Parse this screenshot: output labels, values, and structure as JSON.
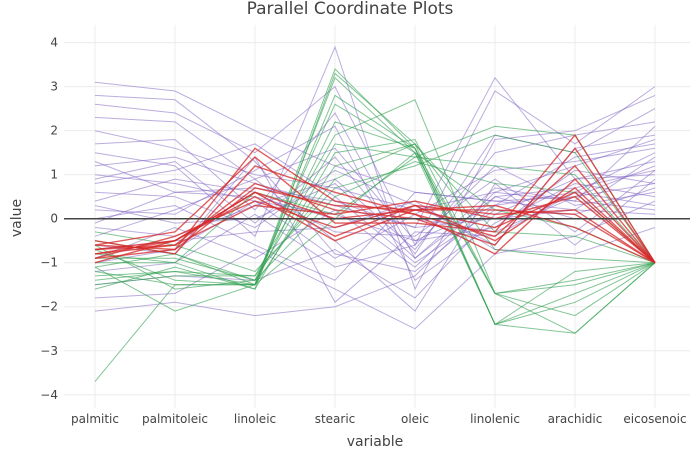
{
  "chart_data": {
    "type": "line",
    "title": "Parallel Coordinate Plots",
    "xlabel": "variable",
    "ylabel": "value",
    "categories": [
      "palmitic",
      "palmitoleic",
      "linoleic",
      "stearic",
      "oleic",
      "linolenic",
      "arachidic",
      "eicosenoic"
    ],
    "ylim": [
      -4.3,
      4.4
    ],
    "yticks": [
      -4,
      -3,
      -2,
      -1,
      0,
      1,
      2,
      3,
      4
    ],
    "ytick_labels": [
      "−4",
      "−3",
      "−2",
      "−1",
      "0",
      "1",
      "2",
      "3",
      "4"
    ],
    "grid": true,
    "zero_line": true,
    "legend": "none",
    "series": [
      {
        "group": "purple",
        "color": "#7a5cbf",
        "lines": [
          [
            3.1,
            2.9,
            2.0,
            1.2,
            0.6,
            0.4,
            0.5,
            1.2
          ],
          [
            2.8,
            2.7,
            1.3,
            -0.8,
            -1.2,
            0.3,
            0.6,
            1.5
          ],
          [
            2.3,
            2.2,
            0.9,
            1.6,
            -0.5,
            -0.2,
            1.1,
            0.8
          ],
          [
            1.7,
            1.8,
            0.2,
            2.4,
            -0.9,
            0.7,
            0.4,
            2.1
          ],
          [
            1.5,
            1.2,
            -0.4,
            3.9,
            -1.6,
            1.8,
            2.0,
            2.8
          ],
          [
            1.2,
            1.4,
            0.8,
            0.3,
            -0.2,
            3.2,
            0.9,
            1.0
          ],
          [
            1.0,
            0.8,
            0.4,
            -0.9,
            0.1,
            1.1,
            1.3,
            1.6
          ],
          [
            0.8,
            1.1,
            1.7,
            0.5,
            -1.0,
            0.2,
            0.1,
            0.7
          ],
          [
            0.6,
            0.5,
            -0.2,
            1.1,
            0.3,
            -0.6,
            1.6,
            1.9
          ],
          [
            0.4,
            0.9,
            0.6,
            -0.3,
            -0.4,
            0.9,
            -0.3,
            1.1
          ],
          [
            0.2,
            0.1,
            1.1,
            2.1,
            -1.4,
            -0.1,
            0.8,
            0.5
          ],
          [
            0.0,
            0.3,
            -0.6,
            -1.4,
            0.6,
            0.4,
            0.2,
            1.4
          ],
          [
            -0.2,
            -0.4,
            0.3,
            0.9,
            -0.7,
            1.5,
            1.9,
            2.2
          ],
          [
            -0.4,
            0.2,
            0.9,
            -0.5,
            -2.1,
            0.8,
            -0.6,
            0.9
          ],
          [
            -0.6,
            -0.8,
            1.4,
            -1.9,
            -0.3,
            -0.4,
            0.6,
            0.3
          ],
          [
            -0.9,
            -0.2,
            -0.9,
            0.2,
            -1.1,
            0.6,
            1.2,
            1.8
          ],
          [
            -1.2,
            -1.0,
            0.1,
            -1.1,
            -0.6,
            1.2,
            0.3,
            0.6
          ],
          [
            -1.5,
            -1.3,
            -1.4,
            -0.7,
            -1.8,
            0.1,
            0.9,
            1.3
          ],
          [
            -1.8,
            -1.7,
            -0.7,
            -1.6,
            -2.5,
            -0.8,
            -0.4,
            0.4
          ],
          [
            -2.1,
            -1.9,
            -2.2,
            -2.0,
            -1.3,
            0.5,
            0.7,
            1.1
          ],
          [
            2.0,
            1.6,
            1.0,
            0.7,
            0.2,
            0.6,
            0.4,
            0.2
          ],
          [
            1.3,
            0.6,
            0.5,
            0.0,
            0.0,
            -0.3,
            0.5,
            0.8
          ],
          [
            0.9,
            1.3,
            -0.1,
            1.4,
            -0.8,
            1.9,
            1.5,
            2.5
          ],
          [
            -0.1,
            0.6,
            0.7,
            0.4,
            -0.2,
            0.0,
            0.2,
            0.1
          ],
          [
            -0.7,
            -0.5,
            -0.3,
            -0.2,
            0.4,
            -0.7,
            -0.8,
            -0.2
          ],
          [
            2.6,
            2.4,
            1.5,
            3.0,
            -0.6,
            2.9,
            1.7,
            3.0
          ],
          [
            0.3,
            -0.1,
            0.0,
            0.8,
            -0.9,
            0.5,
            0.0,
            0.0
          ],
          [
            -1.0,
            -0.7,
            0.4,
            0.1,
            -0.5,
            0.3,
            1.4,
            1.7
          ]
        ]
      },
      {
        "group": "green",
        "color": "#2e9e4f",
        "lines": [
          [
            -3.7,
            -1.5,
            -1.5,
            0.0,
            1.5,
            -1.7,
            -1.5,
            -1.0
          ],
          [
            -1.0,
            -1.0,
            -1.6,
            3.3,
            1.7,
            -2.4,
            -2.6,
            -1.0
          ],
          [
            -1.3,
            -1.2,
            -1.5,
            3.4,
            1.6,
            -1.7,
            -2.2,
            -1.0
          ],
          [
            -0.5,
            -0.8,
            -1.4,
            2.6,
            1.5,
            -2.4,
            -1.7,
            -1.0
          ],
          [
            -1.1,
            -2.1,
            -1.5,
            1.2,
            1.7,
            -0.3,
            -0.4,
            -1.0
          ],
          [
            -0.8,
            -1.0,
            0.6,
            0.1,
            1.4,
            2.1,
            1.9,
            -1.0
          ],
          [
            -1.5,
            -1.3,
            -1.3,
            1.9,
            2.7,
            -1.7,
            -1.4,
            -1.0
          ],
          [
            -0.3,
            -0.6,
            -1.2,
            0.7,
            1.2,
            1.9,
            1.5,
            -1.0
          ],
          [
            -1.2,
            -1.5,
            -1.5,
            2.2,
            1.6,
            -2.4,
            -1.2,
            -1.0
          ],
          [
            -0.9,
            -0.9,
            -1.4,
            0.5,
            1.3,
            0.8,
            0.6,
            -1.0
          ],
          [
            -1.6,
            -1.1,
            -1.6,
            1.5,
            1.8,
            -1.7,
            -2.6,
            -1.0
          ],
          [
            -0.7,
            -1.4,
            -1.5,
            3.2,
            1.5,
            0.2,
            -0.2,
            -1.0
          ],
          [
            -1.4,
            -1.2,
            -1.3,
            0.9,
            1.7,
            -0.7,
            -0.9,
            -1.0
          ],
          [
            -1.1,
            -0.8,
            -1.5,
            2.8,
            1.6,
            -2.4,
            -1.9,
            -1.0
          ],
          [
            -0.6,
            -1.6,
            -1.4,
            1.7,
            1.4,
            1.2,
            1.0,
            -1.0
          ]
        ]
      },
      {
        "group": "red",
        "color": "#d62728",
        "lines": [
          [
            -0.8,
            -0.5,
            0.6,
            0.0,
            0.2,
            -0.2,
            0.6,
            -1.0
          ],
          [
            -0.6,
            -0.7,
            1.6,
            0.4,
            0.1,
            -0.4,
            1.2,
            -1.0
          ],
          [
            -0.9,
            -0.4,
            0.4,
            -0.2,
            0.3,
            0.1,
            0.2,
            -1.0
          ],
          [
            -0.7,
            -0.6,
            0.8,
            0.2,
            0.0,
            -0.6,
            1.6,
            -1.0
          ],
          [
            -1.0,
            -0.5,
            0.5,
            -0.5,
            0.2,
            0.3,
            -0.2,
            -1.0
          ],
          [
            -0.5,
            -0.8,
            1.2,
            0.6,
            0.1,
            -0.8,
            0.9,
            -1.0
          ],
          [
            -0.8,
            -0.6,
            0.3,
            0.1,
            0.4,
            0.0,
            0.5,
            -1.0
          ],
          [
            -0.6,
            -0.3,
            1.4,
            -0.1,
            -0.1,
            -0.3,
            1.9,
            -1.0
          ],
          [
            -0.9,
            -0.7,
            0.7,
            0.3,
            0.2,
            0.2,
            0.1,
            -1.0
          ],
          [
            -0.7,
            -0.5,
            0.6,
            -0.4,
            0.3,
            -0.5,
            0.7,
            -1.0
          ]
        ]
      }
    ]
  }
}
